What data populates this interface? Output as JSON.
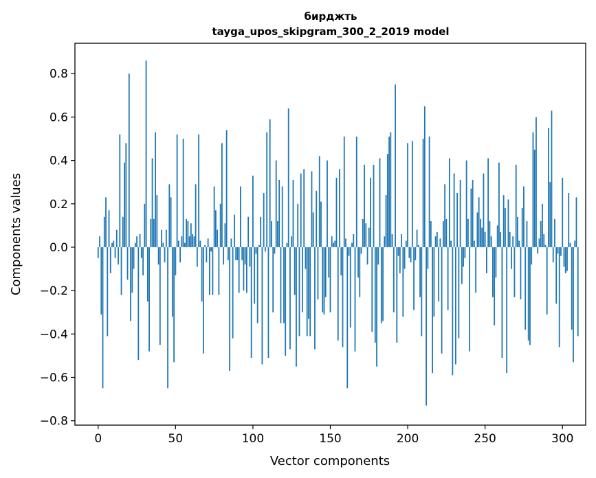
{
  "chart_data": {
    "type": "bar",
    "title": "бирджть",
    "subtitle": "tayga_upos_skipgram_300_2_2019 model",
    "xlabel": "Vector components",
    "ylabel": "Components values",
    "xlim": [
      -15,
      315
    ],
    "ylim": [
      -0.82,
      0.94
    ],
    "x_ticks": [
      0,
      50,
      100,
      150,
      200,
      250,
      300
    ],
    "y_ticks": [
      -0.8,
      -0.6,
      -0.4,
      -0.2,
      0.0,
      0.2,
      0.4,
      0.6,
      0.8
    ],
    "x_tick_labels": [
      "0",
      "50",
      "100",
      "150",
      "200",
      "250",
      "300"
    ],
    "y_tick_labels": [
      "−0.8",
      "−0.6",
      "−0.4",
      "−0.2",
      "0.0",
      "0.2",
      "0.4",
      "0.6",
      "0.8"
    ],
    "bar_color": "#1f77b4",
    "grid": false,
    "values": [
      -0.05,
      0.05,
      -0.31,
      -0.65,
      0.14,
      0.23,
      -0.41,
      0.17,
      -0.12,
      0.02,
      0.03,
      -0.05,
      0.08,
      -0.08,
      0.52,
      -0.22,
      0.14,
      0.39,
      0.48,
      -0.15,
      0.8,
      -0.34,
      -0.21,
      -0.1,
      0.02,
      0.05,
      -0.52,
      0.06,
      -0.05,
      -0.13,
      0.2,
      0.86,
      -0.25,
      -0.48,
      0.13,
      0.41,
      0.13,
      0.53,
      0.24,
      -0.08,
      -0.45,
      0.08,
      0.02,
      -0.07,
      0.08,
      -0.65,
      0.29,
      0.23,
      -0.32,
      -0.53,
      -0.13,
      0.52,
      0.03,
      -0.07,
      0.05,
      0.5,
      0.02,
      0.13,
      0.12,
      0.05,
      0.11,
      0.06,
      0.05,
      0.29,
      -0.09,
      0.52,
      0.03,
      -0.25,
      -0.49,
      0.01,
      -0.07,
      0.04,
      -0.22,
      -0.02,
      -0.22,
      0.28,
      0.17,
      0.08,
      -0.22,
      0.2,
      0.48,
      -0.08,
      0.11,
      0.54,
      -0.06,
      -0.57,
      0.04,
      -0.42,
      0.15,
      -0.06,
      -0.06,
      -0.21,
      0.28,
      -0.06,
      -0.2,
      -0.08,
      -0.21,
      0.14,
      -0.09,
      -0.51,
      0.33,
      -0.26,
      -0.03,
      -0.35,
      0.01,
      0.14,
      -0.54,
      0.25,
      -0.02,
      0.53,
      -0.51,
      0.59,
      0.12,
      -0.3,
      -0.03,
      0.4,
      0.12,
      0.31,
      -0.35,
      0.28,
      -0.35,
      -0.5,
      0.02,
      0.64,
      -0.47,
      0.05,
      0.31,
      -0.22,
      -0.55,
      0.2,
      -0.41,
      0.34,
      -0.3,
      0.36,
      -0.1,
      -0.41,
      -0.33,
      -0.41,
      0.35,
      0.16,
      -0.47,
      0.26,
      -0.24,
      0.42,
      0.21,
      -0.3,
      -0.31,
      -0.23,
      0.4,
      -0.14,
      -0.3,
      0.05,
      0.02,
      0.03,
      0.32,
      -0.43,
      0.36,
      -0.13,
      -0.46,
      0.51,
      0.04,
      -0.65,
      -0.04,
      -0.37,
      0.02,
      0.06,
      -0.48,
      0.51,
      -0.14,
      -0.23,
      -0.03,
      0.13,
      0.38,
      0.11,
      -0.08,
      0.09,
      0.32,
      -0.39,
      0.38,
      -0.44,
      -0.55,
      -0.08,
      0.41,
      -0.35,
      -0.34,
      0.05,
      0.24,
      0.43,
      0.51,
      0.53,
      0.06,
      -0.3,
      0.75,
      -0.44,
      -0.04,
      -0.12,
      0.06,
      -0.32,
      -0.1,
      0.03,
      0.48,
      -0.05,
      -0.07,
      0.49,
      -0.29,
      -0.06,
      0.08,
      0.01,
      -0.23,
      -0.41,
      0.5,
      0.65,
      -0.73,
      -0.1,
      0.51,
      0.12,
      -0.58,
      -0.32,
      0.05,
      0.07,
      -0.25,
      0.04,
      -0.49,
      0.12,
      0.29,
      0.13,
      -0.29,
      0.41,
      0.03,
      -0.59,
      0.34,
      -0.54,
      0.25,
      -0.42,
      0.31,
      -0.17,
      -0.09,
      -0.05,
      0.4,
      0.13,
      -0.48,
      0.27,
      0.31,
      0.03,
      -0.21,
      0.16,
      0.23,
      0.13,
      0.09,
      0.34,
      0.07,
      -0.12,
      0.41,
      0.12,
      0.05,
      -0.23,
      -0.36,
      -0.14,
      0.1,
      0.39,
      0.07,
      -0.51,
      0.24,
      0.18,
      -0.58,
      0.22,
      0.07,
      -0.1,
      0.05,
      -0.23,
      0.38,
      0.14,
      0.03,
      -0.24,
      0.18,
      0.28,
      -0.38,
      0.12,
      -0.43,
      -0.45,
      -0.08,
      0.53,
      0.45,
      0.6,
      -0.03,
      0.04,
      0.12,
      0.2,
      0.06,
      0.01,
      -0.31,
      0.55,
      0.3,
      0.63,
      -0.07,
      0.13,
      -0.26,
      -0.03,
      -0.46,
      -0.04,
      0.32,
      -0.09,
      -0.12,
      -0.11,
      0.25,
      0.02,
      -0.38,
      -0.53,
      0.03,
      0.23,
      -0.41
    ]
  }
}
